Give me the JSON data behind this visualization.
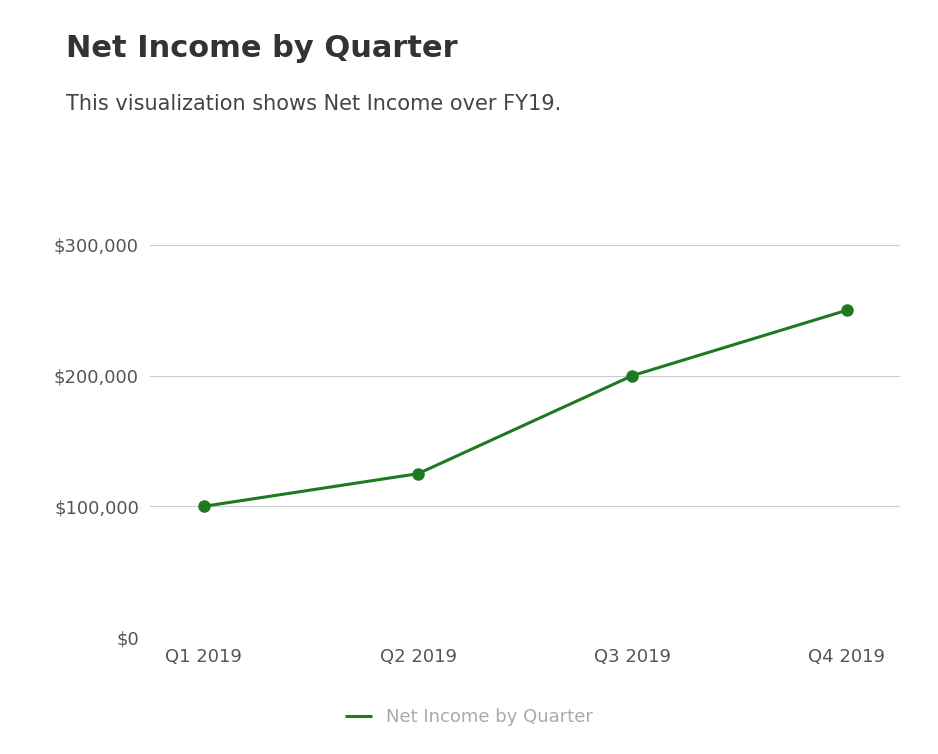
{
  "title": "Net Income by Quarter",
  "subtitle": "This visualization shows Net Income over FY19.",
  "quarters": [
    "Q1 2019",
    "Q2 2019",
    "Q3 2019",
    "Q4 2019"
  ],
  "values": [
    100000,
    125000,
    200000,
    250000
  ],
  "line_color": "#1f7a1f",
  "marker_color": "#1f7a1f",
  "background_color": "#ffffff",
  "grid_color": "#cccccc",
  "title_fontsize": 22,
  "subtitle_fontsize": 15,
  "tick_fontsize": 13,
  "legend_fontsize": 13,
  "ylim": [
    0,
    320000
  ],
  "yticks": [
    0,
    100000,
    200000,
    300000
  ],
  "legend_label": "Net Income by Quarter",
  "legend_text_color": "#aaaaaa",
  "title_color": "#333333",
  "subtitle_color": "#444444",
  "tick_color": "#555555"
}
